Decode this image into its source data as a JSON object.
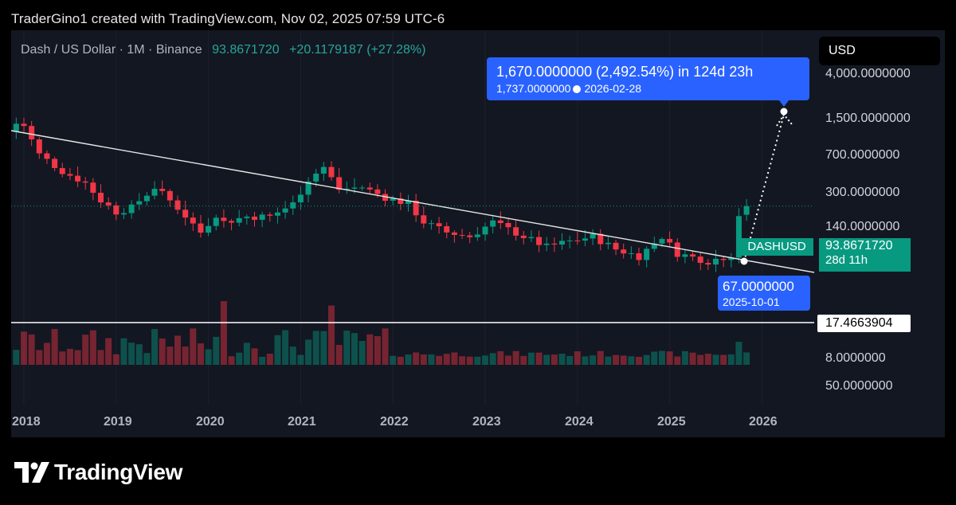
{
  "header_text": "TraderGino1 created with TradingView.com, Nov 02, 2025 07:59 UTC-6",
  "symbol": {
    "name": "Dash / US Dollar · 1M · Binance",
    "price": "93.8671720",
    "change": "+20.1179187 (+27.28%)"
  },
  "currency_button": "USD",
  "price_axis_labels": [
    "4,000.0000000",
    "1,500.0000000",
    "700.0000000",
    "300.0000000",
    "140.0000000",
    "8.0000000",
    "50.0000000"
  ],
  "projection": {
    "line1": "1,670.0000000 (2,492.54%) in 124d 23h",
    "target_price": "1,737.0000000",
    "target_date": "2026-02-28"
  },
  "start_point": {
    "price": "67.0000000",
    "date": "2025-10-01"
  },
  "last_price_tag": {
    "symbol": "DASHUSD",
    "price": "93.8671720",
    "countdown": "28d 11h"
  },
  "support_level": "17.4663904",
  "logo_text": "TradingView",
  "colors": {
    "up": "#089981",
    "down": "#f23645",
    "projection": "#2962ff",
    "background": "#131722"
  },
  "chart_data": {
    "type": "candlestick",
    "title": "Dash / US Dollar · 1M · Binance",
    "x_axis_ticks": [
      "2018",
      "2019",
      "2020",
      "2021",
      "2022",
      "2023",
      "2024",
      "2025",
      "2026"
    ],
    "scale": "log",
    "y_range": [
      8,
      4000
    ],
    "close_trend": [
      [
        2017,
        12,
        950
      ],
      [
        2018,
        1,
        900
      ],
      [
        2018,
        3,
        400
      ],
      [
        2018,
        6,
        250
      ],
      [
        2018,
        9,
        180
      ],
      [
        2018,
        11,
        110
      ],
      [
        2019,
        1,
        80
      ],
      [
        2019,
        3,
        90
      ],
      [
        2019,
        6,
        160
      ],
      [
        2019,
        9,
        90
      ],
      [
        2019,
        12,
        45
      ],
      [
        2020,
        2,
        75
      ],
      [
        2020,
        3,
        60
      ],
      [
        2020,
        6,
        70
      ],
      [
        2020,
        9,
        70
      ],
      [
        2020,
        12,
        100
      ],
      [
        2021,
        2,
        200
      ],
      [
        2021,
        4,
        280
      ],
      [
        2021,
        6,
        150
      ],
      [
        2021,
        9,
        160
      ],
      [
        2021,
        12,
        120
      ],
      [
        2022,
        3,
        100
      ],
      [
        2022,
        5,
        60
      ],
      [
        2022,
        8,
        45
      ],
      [
        2022,
        11,
        40
      ],
      [
        2023,
        2,
        60
      ],
      [
        2023,
        6,
        40
      ],
      [
        2023,
        9,
        30
      ],
      [
        2023,
        12,
        35
      ],
      [
        2024,
        3,
        40
      ],
      [
        2024,
        6,
        28
      ],
      [
        2024,
        9,
        23
      ],
      [
        2024,
        12,
        40
      ],
      [
        2025,
        2,
        25
      ],
      [
        2025,
        6,
        20
      ],
      [
        2025,
        9,
        24
      ],
      [
        2025,
        10,
        73.7
      ],
      [
        2025,
        11,
        93.87
      ]
    ],
    "trendline_resistance": {
      "from": [
        "2017-11",
        1000
      ],
      "to": [
        "2026-06",
        75
      ]
    },
    "support_line": 17.4663904,
    "projection_path": {
      "from": [
        "2025-10-01",
        67
      ],
      "to": [
        "2026-02-28",
        1737
      ]
    }
  }
}
